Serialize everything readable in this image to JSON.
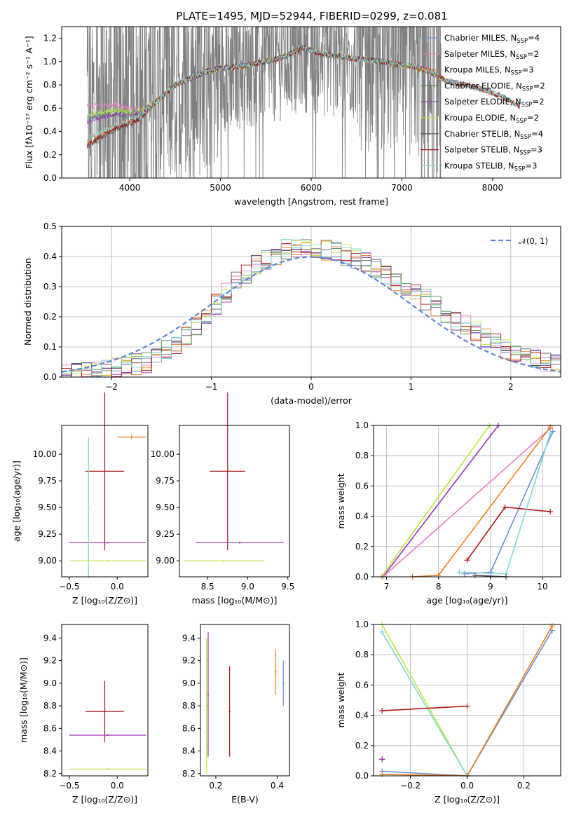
{
  "figure": {
    "title": "PLATE=1495, MJD=52944, FIBERID=0299, z=0.081"
  },
  "colors": {
    "Chabrier MILES": "#6a8fd6",
    "Salpeter MILES": "#e87fc0",
    "Kroupa MILES": "#e8801f",
    "Chabrier ELODIE": "#4c8f4c",
    "Salpeter ELODIE": "#9a33b8",
    "Kroupa ELODIE": "#bde83a",
    "Chabrier STELIB": "#555555",
    "Salpeter STELIB": "#b01818",
    "Kroupa STELIB": "#7fd8d8",
    "data": "#808080",
    "normal": "#5b86d4"
  },
  "chart_data": [
    {
      "id": "spectrum",
      "type": "line",
      "title": "PLATE=1495, MJD=52944, FIBERID=0299, z=0.081",
      "xlabel": "wavelength [Angstrom, rest frame]",
      "ylabel": "Flux [fλ10⁻¹⁷ erg cm⁻² s⁻¹ A⁻¹]",
      "xlim": [
        3250,
        8750
      ],
      "ylim": [
        0,
        1.3
      ],
      "xticks": [
        "4000",
        "5000",
        "6000",
        "7000",
        "8000"
      ],
      "yticks": [
        "0.0",
        "0.2",
        "0.4",
        "0.6",
        "0.8",
        "1.0",
        "1.2"
      ],
      "legend_position": "right",
      "legend": [
        "Chabrier MILES, N_SSP=4",
        "Salpeter MILES, N_SSP=2",
        "Kroupa MILES, N_SSP=3",
        "Chabrier ELODIE, N_SSP=2",
        "Salpeter ELODIE, N_SSP=2",
        "Kroupa ELODIE, N_SSP=2",
        "Chabrier STELIB, N_SSP=4",
        "Salpeter STELIB, N_SSP=3",
        "Kroupa STELIB, N_SSP=3"
      ],
      "data_range_angstrom": [
        3530,
        7430
      ],
      "model_continuum": {
        "x": [
          3530,
          3700,
          3900,
          4100,
          4300,
          4500,
          4700,
          4900,
          5100,
          5300,
          5500,
          5700,
          5900,
          6100,
          6300,
          6500,
          6700,
          6900,
          7100,
          7300,
          7500,
          7700,
          7900,
          8100,
          8300
        ],
        "y": [
          0.5,
          0.54,
          0.56,
          0.56,
          0.66,
          0.8,
          0.87,
          0.93,
          0.95,
          0.97,
          1.0,
          1.04,
          1.12,
          1.07,
          1.05,
          1.02,
          1.01,
          0.98,
          0.96,
          0.92,
          0.83,
          0.8,
          0.76,
          0.7,
          0.62
        ]
      }
    },
    {
      "id": "residuals",
      "type": "line",
      "xlabel": "(data-model)/error",
      "ylabel": "Normed distribution",
      "xlim": [
        -2.5,
        2.5
      ],
      "ylim": [
        0,
        0.5
      ],
      "xticks": [
        "−2",
        "−1",
        "0",
        "1",
        "2"
      ],
      "yticks": [
        "0.0",
        "0.1",
        "0.2",
        "0.3",
        "0.4",
        "0.5"
      ],
      "grid": true,
      "legend_position": "top-right",
      "legend": [
        "𝒩(0, 1)"
      ],
      "histogram_envelope": {
        "x": [
          -2.5,
          -2.2,
          -2.0,
          -1.8,
          -1.6,
          -1.4,
          -1.2,
          -1.0,
          -0.8,
          -0.6,
          -0.4,
          -0.2,
          0.0,
          0.2,
          0.4,
          0.6,
          0.8,
          1.0,
          1.2,
          1.4,
          1.6,
          1.8,
          2.0,
          2.2,
          2.5
        ],
        "y": [
          0.01,
          0.02,
          0.03,
          0.04,
          0.05,
          0.1,
          0.15,
          0.22,
          0.3,
          0.36,
          0.4,
          0.43,
          0.42,
          0.42,
          0.4,
          0.37,
          0.33,
          0.28,
          0.25,
          0.2,
          0.16,
          0.12,
          0.08,
          0.06,
          0.04
        ]
      }
    },
    {
      "id": "age_vs_Z",
      "type": "scatter",
      "xlabel": "Z [log₁₀(Z/Z⊙)]",
      "ylabel": "age  [log₁₀(age/yr)]",
      "xlim": [
        -0.58,
        0.32
      ],
      "ylim": [
        8.85,
        10.27
      ],
      "xticks": [
        "−0.5",
        "0.0"
      ],
      "yticks": [
        "9.00",
        "9.25",
        "9.50",
        "9.75",
        "10.00"
      ],
      "points": [
        {
          "model": "Salpeter STELIB",
          "x": -0.13,
          "y": 9.84,
          "xerr": 0.2,
          "yerr": 0.74
        },
        {
          "model": "Salpeter ELODIE",
          "x": -0.1,
          "y": 9.17,
          "xerr": 0.4,
          "yerr": 0.0
        },
        {
          "model": "Kroupa ELODIE",
          "x": -0.1,
          "y": 9.0,
          "xerr": 0.4,
          "yerr": 0.0
        },
        {
          "model": "Kroupa STELIB",
          "x": -0.3,
          "y": 9.5,
          "xerr": 0.0,
          "yerr": 0.66
        },
        {
          "model": "Kroupa MILES",
          "x": 0.15,
          "y": 10.16,
          "xerr": 0.15,
          "yerr": 0.02
        }
      ]
    },
    {
      "id": "age_vs_mass",
      "type": "scatter",
      "xlabel": "mass [log₁₀(M/M⊙)]",
      "ylabel": "",
      "xlim": [
        8.15,
        9.52
      ],
      "ylim": [
        8.85,
        10.27
      ],
      "xticks": [
        "8.5",
        "9.0",
        "9.5"
      ],
      "yticks": [
        "9.00",
        "9.25",
        "9.50",
        "9.75",
        "10.00"
      ],
      "points": [
        {
          "model": "Salpeter STELIB",
          "x": 8.75,
          "y": 9.84,
          "xerr": 0.22,
          "yerr": 0.74
        },
        {
          "model": "Salpeter ELODIE",
          "x": 8.9,
          "y": 9.17,
          "xerr": 0.55,
          "yerr": 0.0
        },
        {
          "model": "Kroupa ELODIE",
          "x": 8.7,
          "y": 9.0,
          "xerr": 0.5,
          "yerr": 0.0
        }
      ]
    },
    {
      "id": "massweight_vs_age",
      "type": "line",
      "xlabel": "age  [log₁₀(age/yr)]",
      "ylabel": "mass weight",
      "xlim": [
        6.75,
        10.35
      ],
      "ylim": [
        0,
        1.0
      ],
      "xticks": [
        "7",
        "8",
        "9",
        "10"
      ],
      "yticks": [
        "0.0",
        "0.2",
        "0.4",
        "0.6",
        "0.8",
        "1.0"
      ],
      "grid": true,
      "series": [
        {
          "model": "Kroupa ELODIE",
          "x": [
            6.9,
            8.98
          ],
          "y": [
            0.0,
            1.0
          ]
        },
        {
          "model": "Salpeter ELODIE",
          "x": [
            6.93,
            9.15
          ],
          "y": [
            0.0,
            1.0
          ]
        },
        {
          "model": "Salpeter MILES",
          "x": [
            6.93,
            10.15
          ],
          "y": [
            0.0,
            0.98
          ]
        },
        {
          "model": "Kroupa MILES",
          "x": [
            7.5,
            8.0,
            10.15
          ],
          "y": [
            0.0,
            0.01,
            0.99
          ]
        },
        {
          "model": "Chabrier MILES",
          "x": [
            8.5,
            9.0,
            10.2
          ],
          "y": [
            0.02,
            0.03,
            0.96
          ]
        },
        {
          "model": "Salpeter STELIB",
          "x": [
            8.55,
            9.28,
            10.15
          ],
          "y": [
            0.11,
            0.46,
            0.43
          ]
        },
        {
          "model": "Kroupa STELIB",
          "x": [
            8.4,
            9.3,
            10.15
          ],
          "y": [
            0.03,
            0.02,
            0.95
          ]
        },
        {
          "model": "Chabrier STELIB",
          "x": [
            8.7,
            9.3
          ],
          "y": [
            0.01,
            0.0
          ]
        }
      ]
    },
    {
      "id": "mass_vs_Z",
      "type": "scatter",
      "xlabel": "Z [log₁₀(Z/Z⊙)]",
      "ylabel": "mass [log₁₀(M/M⊙)]",
      "xlim": [
        -0.58,
        0.32
      ],
      "ylim": [
        8.18,
        9.52
      ],
      "xticks": [
        "−0.5",
        "0.0"
      ],
      "yticks": [
        "8.2",
        "8.4",
        "8.6",
        "8.8",
        "9.0",
        "9.2",
        "9.4"
      ],
      "points": [
        {
          "model": "Salpeter STELIB",
          "x": -0.13,
          "y": 8.75,
          "xerr": 0.2,
          "yerr": 0.27
        },
        {
          "model": "Salpeter ELODIE",
          "x": -0.1,
          "y": 8.54,
          "xerr": 0.4,
          "yerr": 0.0
        },
        {
          "model": "Kroupa ELODIE",
          "x": -0.1,
          "y": 8.24,
          "xerr": 0.4,
          "yerr": 0.0
        }
      ]
    },
    {
      "id": "mass_vs_ebv",
      "type": "scatter",
      "xlabel": "E(B-V)",
      "ylabel": "",
      "xlim": [
        0.15,
        0.44
      ],
      "ylim": [
        8.18,
        9.52
      ],
      "xticks": [
        "0.2",
        "0.4"
      ],
      "yticks": [
        "8.2",
        "8.4",
        "8.6",
        "8.8",
        "9.0",
        "9.2",
        "9.4"
      ],
      "points": [
        {
          "model": "Kroupa ELODIE",
          "x": 0.17,
          "y": 8.8,
          "xerr": 0.0,
          "yerr": 0.6
        },
        {
          "model": "Salpeter ELODIE",
          "x": 0.175,
          "y": 8.9,
          "xerr": 0.0,
          "yerr": 0.55
        },
        {
          "model": "Salpeter STELIB",
          "x": 0.245,
          "y": 8.75,
          "xerr": 0.0,
          "yerr": 0.4
        },
        {
          "model": "Kroupa MILES",
          "x": 0.395,
          "y": 9.1,
          "xerr": 0.0,
          "yerr": 0.2
        },
        {
          "model": "Chabrier MILES",
          "x": 0.42,
          "y": 9.0,
          "xerr": 0.0,
          "yerr": 0.2
        }
      ]
    },
    {
      "id": "massweight_vs_Z",
      "type": "line",
      "xlabel": "Z [log₁₀(Z/Z⊙)]",
      "ylabel": "mass weight",
      "xlim": [
        -0.33,
        0.33
      ],
      "ylim": [
        0,
        1.0
      ],
      "xticks": [
        "−0.2",
        "0.0",
        "0.2"
      ],
      "yticks": [
        "0.0",
        "0.2",
        "0.4",
        "0.6",
        "0.8",
        "1.0"
      ],
      "grid": true,
      "series": [
        {
          "model": "Kroupa ELODIE",
          "x": [
            -0.3,
            0.0
          ],
          "y": [
            1.0,
            0.0
          ]
        },
        {
          "model": "Salpeter ELODIE",
          "x": [
            -0.3,
            -0.3
          ],
          "y": [
            0.11,
            0.11
          ]
        },
        {
          "model": "Kroupa STELIB",
          "x": [
            -0.3,
            0.0
          ],
          "y": [
            0.95,
            0.0
          ]
        },
        {
          "model": "Salpeter STELIB",
          "x": [
            -0.3,
            0.0
          ],
          "y": [
            0.43,
            0.46
          ]
        },
        {
          "model": "Chabrier MILES",
          "x": [
            -0.3,
            0.0,
            0.3
          ],
          "y": [
            0.03,
            0.0,
            0.96
          ]
        },
        {
          "model": "Kroupa MILES",
          "x": [
            -0.3,
            0.0,
            0.3
          ],
          "y": [
            0.01,
            0.0,
            0.99
          ]
        }
      ]
    }
  ]
}
